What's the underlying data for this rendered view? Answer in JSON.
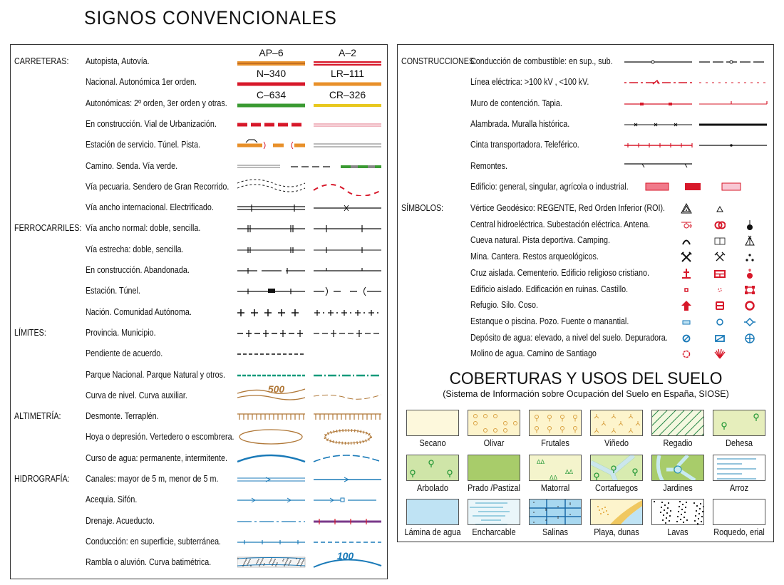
{
  "title": "SIGNOS CONVENCIONALES",
  "colors": {
    "orange": "#e8902a",
    "red": "#d7182a",
    "green": "#3a9a32",
    "yellow": "#e8c81e",
    "blue": "#1a7ab8",
    "brown": "#b07838",
    "pink": "#e88a9a",
    "teal": "#0a9a7a"
  },
  "left": {
    "categories": [
      {
        "label": "CARRETERAS:",
        "row": 0
      },
      {
        "label": "FERROCARRILES:",
        "row": 8
      },
      {
        "label": "LÍMITES:",
        "row": 13
      },
      {
        "label": "ALTIMETRÍA:",
        "row": 17
      },
      {
        "label": "HIDROGRAFÍA:",
        "row": 20
      }
    ],
    "rows": [
      {
        "text": "Autopista, Autovía.",
        "symbol": "road-motorway",
        "labels": [
          "AP–6",
          "A–2"
        ]
      },
      {
        "text": "Nacional. Autonómica 1er orden.",
        "symbol": "road-national",
        "labels": [
          "N–340",
          "LR–111"
        ]
      },
      {
        "text": "Autonómicas: 2º orden, 3er orden y otras.",
        "symbol": "road-regional",
        "labels": [
          "C–634",
          "CR–326"
        ]
      },
      {
        "text": "En construcción. Vial de Urbanización.",
        "symbol": "road-construction"
      },
      {
        "text": "Estación de servicio. Túnel. Pista.",
        "symbol": "road-service"
      },
      {
        "text": "Camino. Senda. Vía verde.",
        "symbol": "path"
      },
      {
        "text": "Vía pecuaria. Sendero de Gran Recorrido.",
        "symbol": "cattle-trail"
      },
      {
        "text": "Vía ancho internacional. Electrificado.",
        "symbol": "rail-intl"
      },
      {
        "text": "Vía ancho normal: doble, sencilla.",
        "symbol": "rail-normal"
      },
      {
        "text": "Vía estrecha: doble, sencilla.",
        "symbol": "rail-narrow"
      },
      {
        "text": "En construcción. Abandonada.",
        "symbol": "rail-construction"
      },
      {
        "text": "Estación. Túnel.",
        "symbol": "rail-station"
      },
      {
        "text": "Nación. Comunidad Autónoma.",
        "symbol": "border-nation"
      },
      {
        "text": "Provincia. Municipio.",
        "symbol": "border-province"
      },
      {
        "text": "Pendiente de acuerdo.",
        "symbol": "border-pending"
      },
      {
        "text": "Parque Nacional. Parque Natural y otros.",
        "symbol": "border-park"
      },
      {
        "text": "Curva de nivel. Curva auxiliar.",
        "symbol": "contour",
        "labels": [
          "500"
        ]
      },
      {
        "text": "Desmonte. Terraplén.",
        "symbol": "cutting"
      },
      {
        "text": "Hoya o depresión. Vertedero o escombrera.",
        "symbol": "depression"
      },
      {
        "text": "Curso de agua: permanente, intermitente.",
        "symbol": "river"
      },
      {
        "text": "Canales: mayor de 5 m, menor de 5 m.",
        "symbol": "canal"
      },
      {
        "text": "Acequia. Sifón.",
        "symbol": "ditch"
      },
      {
        "text": "Drenaje. Acueducto.",
        "symbol": "drain"
      },
      {
        "text": "Conducción: en superficie, subterránea.",
        "symbol": "pipe"
      },
      {
        "text": "Rambla o aluvión. Curva batimétrica.",
        "symbol": "rambla",
        "labels": [
          "100"
        ]
      }
    ]
  },
  "right": {
    "categories": [
      {
        "label": "CONSTRUCCIONES:",
        "row": 0
      },
      {
        "label": "SÍMBOLOS:",
        "row": 7
      }
    ],
    "constructions": [
      {
        "text": "Conducción de combustible: en sup., sub.",
        "symbol": "fuel-pipe"
      },
      {
        "text": "Línea eléctrica: >100 kV , <100 kV.",
        "symbol": "power-line"
      },
      {
        "text": "Muro de contención. Tapia.",
        "symbol": "wall"
      },
      {
        "text": "Alambrada. Muralla histórica.",
        "symbol": "fence"
      },
      {
        "text": "Cinta transportadora. Teleférico.",
        "symbol": "conveyor"
      },
      {
        "text": "Remontes.",
        "symbol": "ski-lift"
      },
      {
        "text": "Edificio: general, singular, agrícola o industrial.",
        "symbol": "building"
      }
    ],
    "symbols": [
      {
        "text": "Vértice Geodésico: REGENTE, Red Orden Inferior (ROI).",
        "icons": [
          "geodesic-regente-icon",
          "geodesic-roi-icon"
        ]
      },
      {
        "text": "Central hidroeléctrica. Subestación eléctrica. Antena.",
        "icons": [
          "hydro-plant-icon",
          "substation-icon",
          "antenna-icon"
        ]
      },
      {
        "text": "Cueva natural. Pista deportiva. Camping.",
        "icons": [
          "cave-icon",
          "sports-court-icon",
          "camping-icon"
        ]
      },
      {
        "text": "Mina. Cantera. Restos arqueológicos.",
        "icons": [
          "mine-icon",
          "quarry-icon",
          "ruins-icon"
        ]
      },
      {
        "text": "Cruz aislada. Cementerio. Edificio religioso cristiano.",
        "icons": [
          "cross-icon",
          "cemetery-icon",
          "church-icon"
        ]
      },
      {
        "text": "Edificio aislado. Edificación en ruinas. Castillo.",
        "icons": [
          "building-icon",
          "ruined-building-icon",
          "castle-icon"
        ]
      },
      {
        "text": "Refugio. Silo. Coso.",
        "icons": [
          "shelter-icon",
          "silo-icon",
          "bullring-icon"
        ]
      },
      {
        "text": "Estanque o piscina. Pozo. Fuente o manantial.",
        "icons": [
          "pool-icon",
          "well-icon",
          "spring-icon"
        ]
      },
      {
        "text": "Depósito de agua: elevado, a nivel del suelo. Depuradora.",
        "icons": [
          "water-tower-icon",
          "water-tank-icon",
          "treatment-plant-icon"
        ]
      },
      {
        "text": "Molino de agua. Camino de Santiago",
        "icons": [
          "watermill-icon",
          "scallop-shell-icon"
        ]
      }
    ]
  },
  "coverage": {
    "title": "COBERTURAS Y USOS DEL SUELO",
    "subtitle": "(Sistema de Información sobre Ocupación del Suelo en España, SIOSE)",
    "tiles": [
      {
        "label": "Secano",
        "fill": "#fdf8dc"
      },
      {
        "label": "Olivar",
        "fill": "#fdf4cc"
      },
      {
        "label": "Frutales",
        "fill": "#fdf4cc"
      },
      {
        "label": "Viñedo",
        "fill": "#fdf4cc"
      },
      {
        "label": "Regadio",
        "fill": "#f4f8e0"
      },
      {
        "label": "Dehesa",
        "fill": "#e6eebc"
      },
      {
        "label": "Arbolado",
        "fill": "#cfe5a8"
      },
      {
        "label": "Prado /Pastizal",
        "fill": "#a8cc6a"
      },
      {
        "label": "Matorral",
        "fill": "#f4f4cc"
      },
      {
        "label": "Cortafuegos",
        "fill": "#d8ebb0"
      },
      {
        "label": "Jardines",
        "fill": "#a8cc6a"
      },
      {
        "label": "Arroz",
        "fill": "#ffffff"
      },
      {
        "label": "Lámina de agua",
        "fill": "#bfe3f4"
      },
      {
        "label": "Encharcable",
        "fill": "#eaf6fa"
      },
      {
        "label": "Salinas",
        "fill": "#a8d8f0"
      },
      {
        "label": "Playa, dunas",
        "fill": "#fdf4cc"
      },
      {
        "label": "Lavas",
        "fill": "#ffffff"
      },
      {
        "label": "Roquedo, erial",
        "fill": "#ffffff"
      }
    ]
  }
}
